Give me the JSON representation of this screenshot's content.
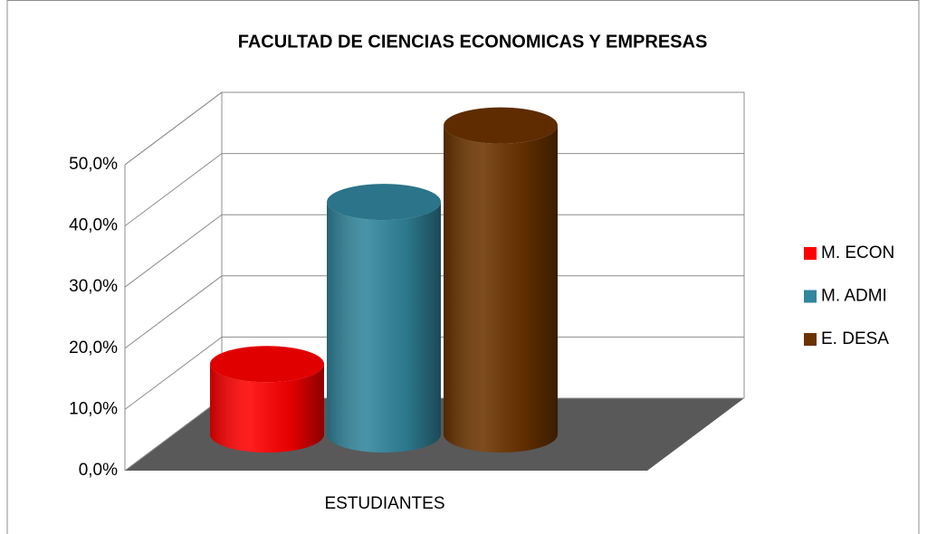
{
  "chart_data": {
    "type": "bar3d-cylinder",
    "title": "FACULTAD DE CIENCIAS ECONOMICAS Y EMPRESAS",
    "categories": [
      "ESTUDIANTES"
    ],
    "series": [
      {
        "name": "M. ECON",
        "color": "#ff0000",
        "values": [
          11.5
        ]
      },
      {
        "name": "M. ADMI",
        "color": "#31859c",
        "values": [
          38.0
        ]
      },
      {
        "name": "E. DESA",
        "color": "#6b3300",
        "values": [
          50.5
        ]
      }
    ],
    "ylim": [
      0,
      50
    ],
    "yticks": [
      {
        "value": 0,
        "label": "0,0%"
      },
      {
        "value": 10,
        "label": "10,0%"
      },
      {
        "value": 20,
        "label": "20,0%"
      },
      {
        "value": 30,
        "label": "30,0%"
      },
      {
        "value": 40,
        "label": "40,0%"
      },
      {
        "value": 50,
        "label": "50,0%"
      }
    ],
    "grid": true,
    "legend": "right"
  }
}
